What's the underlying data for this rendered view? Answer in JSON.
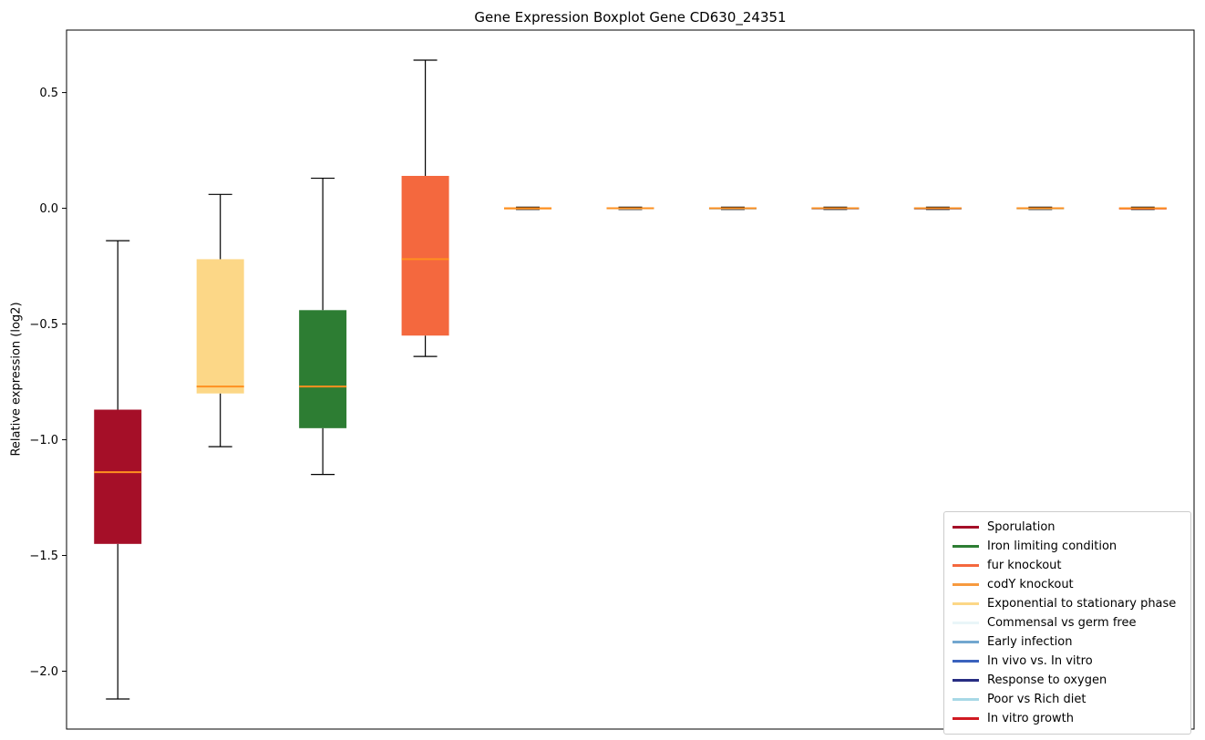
{
  "chart_data": {
    "type": "boxplot",
    "title": "Gene Expression Boxplot Gene CD630_24351",
    "ylabel": "Relative expression (log2)",
    "xlabel": "",
    "ylim": [
      -2.25,
      0.77
    ],
    "yticks": [
      0.5,
      0.0,
      -0.5,
      -1.0,
      -1.5,
      -2.0
    ],
    "grid": false,
    "legend_position": "lower right",
    "median_color": "#ff9020",
    "whisker_color": "#000000",
    "boxes": [
      {
        "condition": "Sporulation",
        "color": "#a50f28",
        "whisker_low": -2.12,
        "q1": -1.45,
        "median": -1.14,
        "q3": -0.87,
        "whisker_high": -0.14
      },
      {
        "condition": "Exponential to stationary phase",
        "color": "#fcd787",
        "whisker_low": -1.03,
        "q1": -0.8,
        "median": -0.77,
        "q3": -0.22,
        "whisker_high": 0.06
      },
      {
        "condition": "Iron limiting condition",
        "color": "#2d7d33",
        "whisker_low": -1.15,
        "q1": -0.95,
        "median": -0.77,
        "q3": -0.44,
        "whisker_high": 0.13
      },
      {
        "condition": "fur knockout",
        "color": "#f4683e",
        "whisker_low": -0.64,
        "q1": -0.55,
        "median": -0.22,
        "q3": 0.14,
        "whisker_high": 0.64
      },
      {
        "condition": "codY knockout",
        "color": "#f79a3f",
        "whisker_low": -0.005,
        "q1": -0.003,
        "median": 0.0,
        "q3": 0.003,
        "whisker_high": 0.005
      },
      {
        "condition": "Commensal vs germ free",
        "color": "#e9f6f8",
        "whisker_low": -0.005,
        "q1": -0.003,
        "median": 0.0,
        "q3": 0.003,
        "whisker_high": 0.005
      },
      {
        "condition": "Early infection",
        "color": "#72a7cf",
        "whisker_low": -0.005,
        "q1": -0.003,
        "median": 0.0,
        "q3": 0.003,
        "whisker_high": 0.005
      },
      {
        "condition": "In vivo vs. In vitro",
        "color": "#3a62bd",
        "whisker_low": -0.005,
        "q1": -0.003,
        "median": 0.0,
        "q3": 0.003,
        "whisker_high": 0.005
      },
      {
        "condition": "Response to oxygen",
        "color": "#272d82",
        "whisker_low": -0.005,
        "q1": -0.003,
        "median": 0.0,
        "q3": 0.003,
        "whisker_high": 0.005
      },
      {
        "condition": "Poor vs Rich diet",
        "color": "#a7d8e6",
        "whisker_low": -0.005,
        "q1": -0.003,
        "median": 0.0,
        "q3": 0.003,
        "whisker_high": 0.005
      },
      {
        "condition": "In vitro growth",
        "color": "#d01a22",
        "whisker_low": -0.005,
        "q1": -0.003,
        "median": 0.0,
        "q3": 0.003,
        "whisker_high": 0.005
      }
    ],
    "legend": [
      {
        "label": "Sporulation",
        "color": "#a50f28"
      },
      {
        "label": "Iron limiting condition",
        "color": "#2d7d33"
      },
      {
        "label": "fur knockout",
        "color": "#f4683e"
      },
      {
        "label": "codY knockout",
        "color": "#f79a3f"
      },
      {
        "label": "Exponential to stationary phase",
        "color": "#fcd787"
      },
      {
        "label": "Commensal vs germ free",
        "color": "#e9f6f8"
      },
      {
        "label": "Early infection",
        "color": "#72a7cf"
      },
      {
        "label": "In vivo vs. In vitro",
        "color": "#3a62bd"
      },
      {
        "label": "Response to oxygen",
        "color": "#272d82"
      },
      {
        "label": "Poor vs Rich diet",
        "color": "#a7d8e6"
      },
      {
        "label": "In vitro growth",
        "color": "#d01a22"
      }
    ]
  }
}
